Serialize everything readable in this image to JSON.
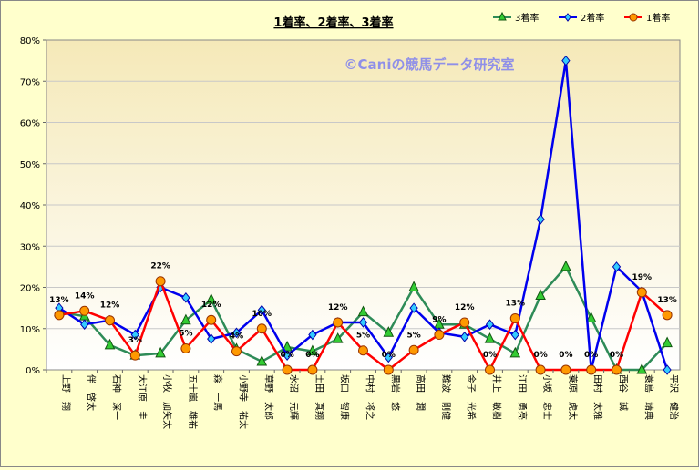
{
  "chart_data": {
    "type": "line",
    "title": "1着率、2着率、3着率",
    "watermark": "©Caniの競馬データ研究室",
    "xlabel": "",
    "ylabel": "",
    "ylim": [
      0,
      80
    ],
    "y_ticks": [
      "0%",
      "10%",
      "20%",
      "30%",
      "40%",
      "50%",
      "60%",
      "70%",
      "80%"
    ],
    "grid": true,
    "legend_position": "top-right",
    "categories": [
      "上野　翔",
      "伴　啓太",
      "石神　深一",
      "大江原　圭",
      "小牧　加矢太",
      "五十嵐　雄祐",
      "森　一馬",
      "小野寺　祐太",
      "草野　太郎",
      "水沼　元輝",
      "土田　真翔",
      "坂口　智康",
      "中村　将之",
      "黒岩　悠",
      "高田　潤",
      "難波　剛健",
      "金子　光希",
      "井上　敏樹",
      "江田　勇亮",
      "小坂　忠士",
      "蓑原　虎太",
      "田村　太雅",
      "西谷　誠",
      "蓑島　靖典",
      "平沢　健治"
    ],
    "series": [
      {
        "name": "3着率",
        "color": "#2e8b57",
        "marker": "triangle",
        "marker_fill": "#33cc33",
        "values": [
          14,
          13,
          6,
          3.5,
          4,
          12,
          17,
          5,
          2,
          5.5,
          4.5,
          7.5,
          14,
          9,
          20,
          11,
          11,
          7.5,
          4,
          18,
          25,
          12.5,
          0,
          0,
          6.5
        ]
      },
      {
        "name": "2着率",
        "color": "#0000ee",
        "marker": "diamond",
        "marker_fill": "#33ccff",
        "values": [
          15,
          11,
          12,
          8.5,
          20,
          17.5,
          7.5,
          9,
          14.5,
          3.5,
          8.5,
          11.5,
          11.5,
          3,
          15,
          9,
          8,
          11,
          8.5,
          36.5,
          75,
          0,
          25,
          19,
          0
        ]
      },
      {
        "name": "1着率",
        "color": "#ff0000",
        "marker": "circle",
        "marker_fill": "#ff9900",
        "values": [
          13.3,
          14.3,
          12,
          3.5,
          21.5,
          5.2,
          12.1,
          4.5,
          10,
          0,
          0,
          11.5,
          4.7,
          0,
          4.8,
          8.5,
          11.5,
          0,
          12.5,
          0,
          0,
          0,
          0,
          18.8,
          13.3
        ]
      }
    ],
    "data_labels": [
      "13%",
      "14%",
      "12%",
      "3%",
      "22%",
      "5%",
      "12%",
      "4%",
      "10%",
      "0%",
      "0%",
      "12%",
      "5%",
      "0%",
      "5%",
      "9%",
      "12%",
      "0%",
      "13%",
      "0%",
      "0%",
      "0%",
      "0%",
      "19%",
      "13%"
    ]
  }
}
